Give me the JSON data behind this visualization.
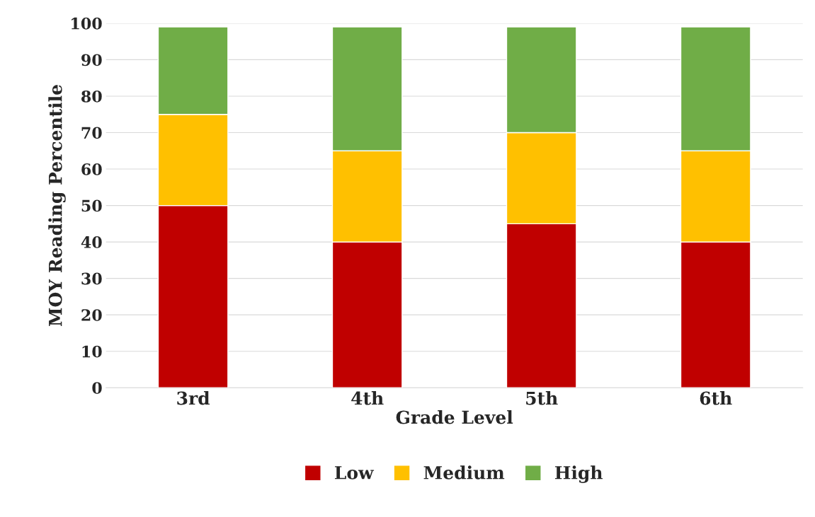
{
  "chart_data": {
    "type": "bar",
    "stacked": true,
    "xlabel": "Grade Level",
    "ylabel": "MOY Reading Percentile",
    "categories": [
      "3rd",
      "4th",
      "5th",
      "6th"
    ],
    "series": [
      {
        "name": "Low",
        "color": "#c00000",
        "values": [
          50,
          40,
          45,
          40
        ]
      },
      {
        "name": "Medium",
        "color": "#ffc000",
        "values": [
          25,
          25,
          25,
          25
        ]
      },
      {
        "name": "High",
        "color": "#70ad47",
        "values": [
          24,
          34,
          29,
          34
        ]
      }
    ],
    "ylim": [
      0,
      100
    ],
    "yticks": [
      0,
      10,
      20,
      30,
      40,
      50,
      60,
      70,
      80,
      90,
      100
    ],
    "grid": "y",
    "legend": "bottom"
  }
}
